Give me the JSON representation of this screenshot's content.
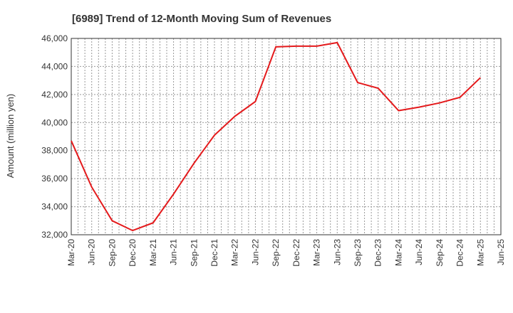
{
  "chart_data": {
    "type": "line",
    "title": "[6989]  Trend of 12-Month Moving Sum of Revenues",
    "xlabel": "",
    "ylabel": "Amount (million yen)",
    "ylim": [
      32000,
      46000
    ],
    "y_ticks": [
      "32,000",
      "34,000",
      "36,000",
      "38,000",
      "40,000",
      "42,000",
      "44,000",
      "46,000"
    ],
    "categories": [
      "Mar-20",
      "Jun-20",
      "Sep-20",
      "Dec-20",
      "Mar-21",
      "Jun-21",
      "Sep-21",
      "Dec-21",
      "Mar-22",
      "Jun-22",
      "Sep-22",
      "Dec-22",
      "Mar-23",
      "Jun-23",
      "Sep-23",
      "Dec-23",
      "Mar-24",
      "Jun-24",
      "Sep-24",
      "Dec-24",
      "Mar-25",
      "Jun-25"
    ],
    "series": [
      {
        "values": [
          38700,
          35400,
          33000,
          32300,
          32850,
          34900,
          37100,
          39100,
          40450,
          41500,
          45400,
          45450,
          45450,
          45700,
          42850,
          42450,
          40850,
          41100,
          41400,
          41800,
          43200,
          null
        ]
      }
    ],
    "grid": true,
    "line_color": "#e41a1c",
    "grid_color": "#999999"
  }
}
